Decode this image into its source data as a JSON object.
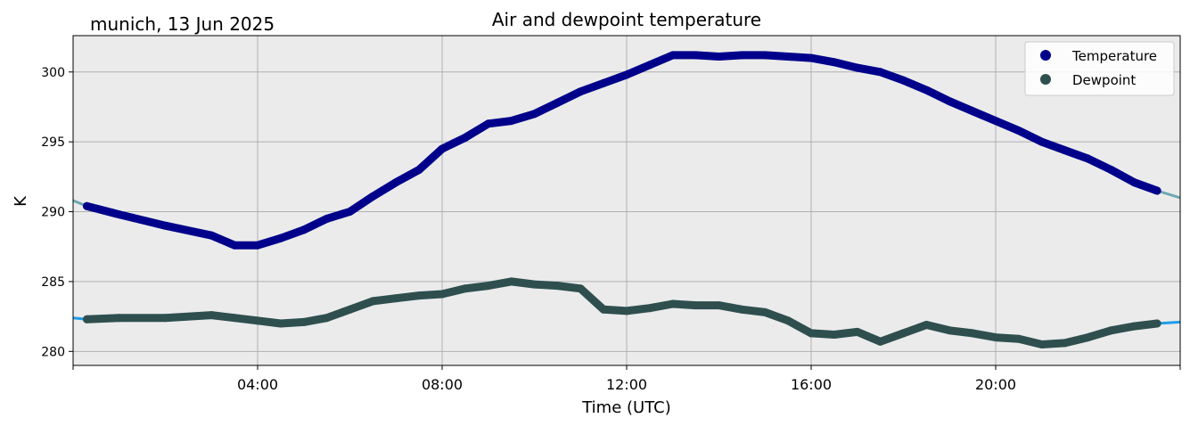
{
  "chart_data": {
    "type": "line",
    "title": "Air and dewpoint temperature",
    "location_date": "munich, 13 Jun 2025",
    "xlabel": "Time (UTC)",
    "ylabel": "K",
    "xlim_hours": [
      0,
      24
    ],
    "ylim": [
      279,
      302.6
    ],
    "x_ticks": [
      "04:00",
      "08:00",
      "12:00",
      "16:00",
      "20:00"
    ],
    "y_ticks": [
      280,
      285,
      290,
      295,
      300
    ],
    "grid": true,
    "plot_background": "#ebebeb",
    "legend_position": "top-right",
    "series": [
      {
        "name": "Temperature",
        "marker_color": "#00008b",
        "raw_color": "#6fa8b2",
        "x": [
          0.0,
          0.3,
          1.0,
          2.0,
          3.0,
          3.5,
          4.0,
          4.5,
          5.0,
          5.5,
          6.0,
          6.5,
          7.0,
          7.5,
          8.0,
          8.5,
          9.0,
          9.5,
          10.0,
          10.5,
          11.0,
          11.5,
          12.0,
          12.5,
          13.0,
          13.5,
          14.0,
          14.5,
          15.0,
          15.5,
          16.0,
          16.5,
          17.0,
          17.5,
          18.0,
          18.5,
          19.0,
          19.5,
          20.0,
          20.5,
          21.0,
          21.5,
          22.0,
          22.5,
          23.0,
          23.5,
          24.0
        ],
        "y": [
          290.8,
          290.4,
          289.8,
          289.0,
          288.3,
          287.6,
          287.6,
          288.1,
          288.7,
          289.5,
          290.0,
          291.1,
          292.1,
          293.0,
          294.5,
          295.3,
          296.3,
          296.5,
          297.0,
          297.8,
          298.6,
          299.2,
          299.8,
          300.5,
          301.2,
          301.2,
          301.1,
          301.2,
          301.2,
          301.1,
          301.0,
          300.7,
          300.3,
          300.0,
          299.4,
          298.7,
          297.9,
          297.2,
          296.5,
          295.8,
          295.0,
          294.4,
          293.8,
          293.0,
          292.1,
          291.5,
          291.0
        ]
      },
      {
        "name": "Dewpoint",
        "marker_color": "#2f4f4f",
        "raw_color": "#1e9de8",
        "x": [
          0.0,
          0.3,
          1.0,
          2.0,
          3.0,
          3.5,
          4.0,
          4.5,
          5.0,
          5.5,
          6.0,
          6.5,
          7.0,
          7.5,
          8.0,
          8.5,
          9.0,
          9.5,
          10.0,
          10.5,
          11.0,
          11.5,
          12.0,
          12.5,
          13.0,
          13.5,
          14.0,
          14.5,
          15.0,
          15.5,
          16.0,
          16.5,
          17.0,
          17.5,
          18.0,
          18.5,
          19.0,
          19.5,
          20.0,
          20.5,
          21.0,
          21.5,
          22.0,
          22.5,
          23.0,
          23.5,
          24.0
        ],
        "y": [
          282.4,
          282.3,
          282.4,
          282.4,
          282.6,
          282.4,
          282.2,
          282.0,
          282.1,
          282.4,
          283.0,
          283.6,
          283.8,
          284.0,
          284.1,
          284.5,
          284.7,
          285.0,
          284.8,
          284.7,
          284.5,
          283.0,
          282.9,
          283.1,
          283.4,
          283.3,
          283.3,
          283.0,
          282.8,
          282.2,
          281.3,
          281.2,
          281.4,
          280.7,
          281.3,
          281.9,
          281.5,
          281.3,
          281.0,
          280.9,
          280.5,
          280.6,
          281.0,
          281.5,
          281.8,
          282.0,
          282.1
        ]
      }
    ]
  }
}
